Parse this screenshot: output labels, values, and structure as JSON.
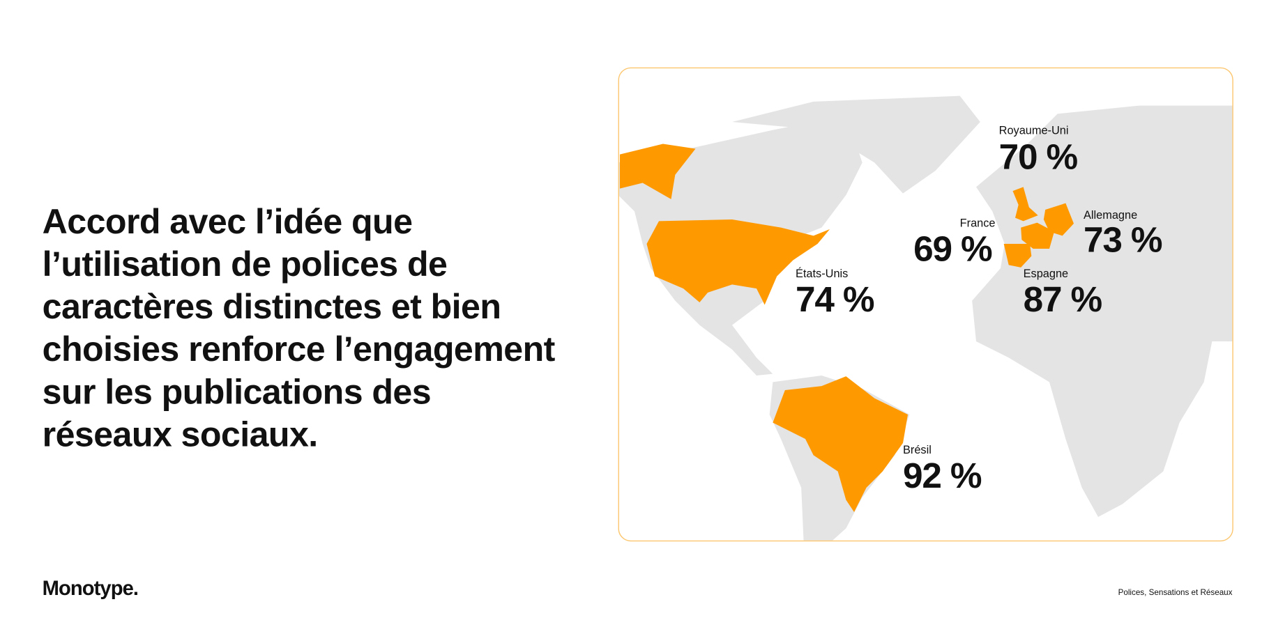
{
  "headline": [
    "Accord avec l’idée que",
    "l’utilisation de polices de",
    "caractères distinctes et bien",
    "choisies renforce l’engagement",
    "sur les publications des",
    "réseaux sociaux."
  ],
  "map": {
    "regions": [
      {
        "name": "Royaume-Uni",
        "value": "70 %"
      },
      {
        "name": "France",
        "value": "69 %"
      },
      {
        "name": "Allemagne",
        "value": "73 %"
      },
      {
        "name": "Espagne",
        "value": "87 %"
      },
      {
        "name": "États-Unis",
        "value": "74 %"
      },
      {
        "name": "Brésil",
        "value": "92 %"
      }
    ]
  },
  "footer": {
    "brand": "Monotype.",
    "caption": "Polices, Sensations et Réseaux"
  }
}
